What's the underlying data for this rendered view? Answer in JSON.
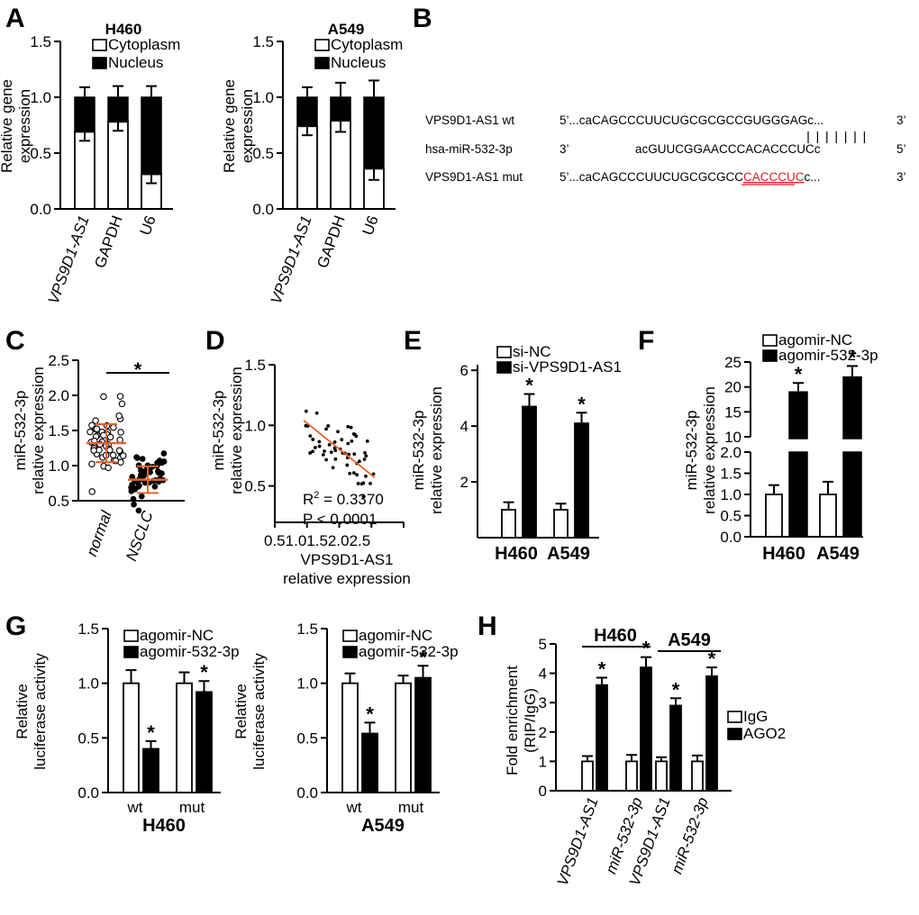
{
  "panels": {
    "A": "A",
    "B": "B",
    "C": "C",
    "D": "D",
    "E": "E",
    "F": "F",
    "G": "G",
    "H": "H"
  },
  "sequence": {
    "wt_label": "VPS9D1-AS1 wt",
    "wt_5": "5’...caCAGCCCUUCUGCGCGCCGUGGGAGc...",
    "wt_3": "3’",
    "mir_label": "hsa-miR-532-3p",
    "mir_3": "3’",
    "mir_seq": "acGUUCGGAACCCACACCCUCc",
    "mir_5": "5’",
    "mut_label": "VPS9D1-AS1 mut",
    "mut_5": "5’...caCAGCCCUUCUGCGCGCC",
    "mut_red": "CACCCUC",
    "mut_tail": "c...",
    "mut_3": "3’",
    "red_color": "#e01f1f"
  },
  "chart_data": [
    {
      "id": "A1",
      "type": "bar",
      "stacked": true,
      "title": "H460",
      "ylabel": "Relative gene expression",
      "ylim": [
        0,
        1.5
      ],
      "yticks": [
        "0.0",
        "0.5",
        "1.0",
        "1.5"
      ],
      "categories": [
        "VPS9D1-AS1",
        "GAPDH",
        "U6"
      ],
      "series": [
        {
          "name": "Cytoplasm",
          "values": [
            0.69,
            0.78,
            0.31
          ],
          "errors": [
            0.08,
            0.08,
            0.08
          ]
        },
        {
          "name": "Nucleus",
          "values": [
            0.31,
            0.22,
            0.69
          ],
          "errors": [
            0.09,
            0.1,
            0.1
          ]
        }
      ]
    },
    {
      "id": "A2",
      "type": "bar",
      "stacked": true,
      "title": "A549",
      "ylabel": "Relative gene expression",
      "ylim": [
        0,
        1.5
      ],
      "yticks": [
        "0.0",
        "0.5",
        "1.0",
        "1.5"
      ],
      "categories": [
        "VPS9D1-AS1",
        "GAPDH",
        "U6"
      ],
      "series": [
        {
          "name": "Cytoplasm",
          "values": [
            0.74,
            0.79,
            0.36
          ],
          "errors": [
            0.08,
            0.1,
            0.1
          ]
        },
        {
          "name": "Nucleus",
          "values": [
            0.26,
            0.21,
            0.64
          ],
          "errors": [
            0.09,
            0.13,
            0.15
          ]
        }
      ]
    },
    {
      "id": "C",
      "type": "scatter",
      "ylabel": "miR-532-3p relative expression",
      "ylim": [
        0.5,
        2.5
      ],
      "yticks": [
        "0.5",
        "1.0",
        "1.5",
        "2.0",
        "2.5"
      ],
      "categories": [
        "normal",
        "NSCLC"
      ],
      "means": [
        1.32,
        0.8
      ],
      "sd": [
        0.27,
        0.19
      ],
      "significance": "*",
      "mean_color": "#e8622a"
    },
    {
      "id": "D",
      "type": "scatter",
      "xlabel": "VPS9D1-AS1 relative expression",
      "ylabel": "miR-532-3p relative expression",
      "xlim": [
        0.5,
        2.5
      ],
      "ylim": [
        0.2,
        1.5
      ],
      "xticks": [
        "0.5",
        "1.0",
        "1.5",
        "2.0",
        "2.5"
      ],
      "yticks": [
        "0.5",
        "1.0",
        "1.5"
      ],
      "fit": {
        "x": [
          0.95,
          2.05
        ],
        "y": [
          1.04,
          0.57
        ]
      },
      "r2_prefix": "R",
      "r2_sup": "2",
      "r2_suffix": " = 0.3370",
      "p_text": "P < 0.0001",
      "fit_color": "#e8622a"
    },
    {
      "id": "E",
      "type": "bar",
      "ylabel": "miR-532-3p relative expression",
      "ylim": [
        0,
        6
      ],
      "yticks": [
        "2",
        "4",
        "6"
      ],
      "categories": [
        "H460",
        "A549"
      ],
      "series": [
        {
          "name": "si-NC",
          "values": [
            1.0,
            1.0
          ],
          "errors": [
            0.27,
            0.22
          ]
        },
        {
          "name": "si-VPS9D1-AS1",
          "values": [
            4.7,
            4.1
          ],
          "errors": [
            0.45,
            0.38
          ]
        }
      ],
      "significance": "*"
    },
    {
      "id": "F",
      "type": "bar",
      "ylabel": "miR-532-3p relative expression",
      "broken_axis": true,
      "yticks": [
        "0.0",
        "0.5",
        "1.0",
        "1.5",
        "2.0",
        "10",
        "15",
        "20",
        "25"
      ],
      "categories": [
        "H460",
        "A549"
      ],
      "series": [
        {
          "name": "agomir-NC",
          "values": [
            1.0,
            1.0
          ],
          "errors": [
            0.22,
            0.3
          ]
        },
        {
          "name": "agomir-532-3p",
          "values": [
            19,
            22
          ],
          "errors": [
            1.8,
            2.2
          ]
        }
      ],
      "significance": "*"
    },
    {
      "id": "G1",
      "type": "bar",
      "title": "H460",
      "ylabel": "Relative luciferase activity",
      "ylim": [
        0,
        1.5
      ],
      "yticks": [
        "0.0",
        "0.5",
        "1.0",
        "1.5"
      ],
      "categories": [
        "wt",
        "mut"
      ],
      "series": [
        {
          "name": "agomir-NC",
          "values": [
            1.0,
            1.0
          ],
          "errors": [
            0.12,
            0.1
          ]
        },
        {
          "name": "agomir-532-3p",
          "values": [
            0.4,
            0.92
          ],
          "errors": [
            0.07,
            0.1
          ]
        }
      ],
      "significance": "*"
    },
    {
      "id": "G2",
      "type": "bar",
      "title": "A549",
      "ylabel": "Relative luciferase activity",
      "ylim": [
        0,
        1.5
      ],
      "yticks": [
        "0.0",
        "0.5",
        "1.0",
        "1.5"
      ],
      "categories": [
        "wt",
        "mut"
      ],
      "series": [
        {
          "name": "agomir-NC",
          "values": [
            1.0,
            1.0
          ],
          "errors": [
            0.09,
            0.07
          ]
        },
        {
          "name": "agomir-532-3p",
          "values": [
            0.54,
            1.05
          ],
          "errors": [
            0.1,
            0.11
          ]
        }
      ],
      "significance": "*"
    },
    {
      "id": "H",
      "type": "bar",
      "ylabel": "Fold enrichment (RIP/IgG)",
      "ylim": [
        0,
        5
      ],
      "yticks": [
        "0",
        "1",
        "2",
        "3",
        "4",
        "5"
      ],
      "groups": [
        "H460",
        "A549"
      ],
      "categories": [
        "VPS9D1-AS1",
        "miR-532-3p",
        "VPS9D1-AS1",
        "miR-532-3p"
      ],
      "series": [
        {
          "name": "IgG",
          "values": [
            1.0,
            1.0,
            1.0,
            1.0
          ],
          "errors": [
            0.18,
            0.22,
            0.14,
            0.2
          ]
        },
        {
          "name": "AGO2",
          "values": [
            3.6,
            4.2,
            2.9,
            3.9
          ],
          "errors": [
            0.25,
            0.35,
            0.25,
            0.3
          ]
        }
      ],
      "significance": "*"
    }
  ]
}
